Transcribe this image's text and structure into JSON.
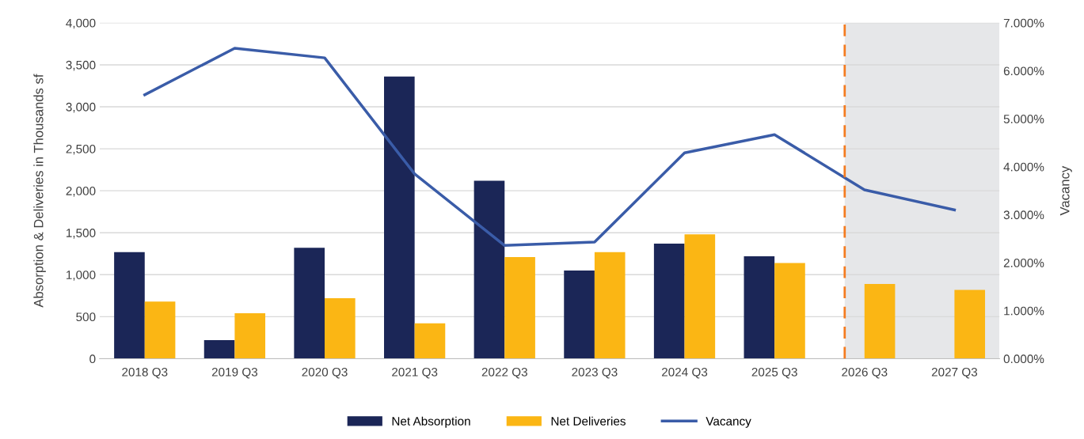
{
  "chart_data": {
    "type": "bar",
    "ylabel": "Absorption & Deliveries in Thousands sf",
    "y2label": "Vacancy",
    "categories": [
      "2018 Q3",
      "2019 Q3",
      "2020 Q3",
      "2021 Q3",
      "2022 Q3",
      "2023 Q3",
      "2024 Q3",
      "2025 Q3",
      "2026 Q3",
      "2027 Q3"
    ],
    "series": [
      {
        "name": "Net Absorption",
        "color": "#1b2657",
        "values": [
          1270,
          220,
          1320,
          3360,
          2120,
          1050,
          1370,
          1220,
          null,
          null
        ]
      },
      {
        "name": "Net Deliveries",
        "color": "#fbb614",
        "values": [
          680,
          540,
          720,
          420,
          1210,
          1270,
          1480,
          1140,
          890,
          820
        ]
      },
      {
        "name": "Vacancy",
        "type": "line",
        "axis": "y2",
        "color": "#3a5ca8",
        "values": [
          5.5,
          6.47,
          6.27,
          3.85,
          2.36,
          2.43,
          4.29,
          4.67,
          3.52,
          3.1
        ]
      }
    ],
    "ylim": [
      0,
      4000
    ],
    "yticks": [
      {
        "value": 0,
        "label": "0"
      },
      {
        "value": 500,
        "label": "500"
      },
      {
        "value": 1000,
        "label": "1,000"
      },
      {
        "value": 1500,
        "label": "1,500"
      },
      {
        "value": 2000,
        "label": "2,000"
      },
      {
        "value": 2500,
        "label": "2,500"
      },
      {
        "value": 3000,
        "label": "3,000"
      },
      {
        "value": 3500,
        "label": "3,500"
      },
      {
        "value": 4000,
        "label": "4,000"
      }
    ],
    "y2lim": [
      0,
      7
    ],
    "y2ticks": [
      {
        "value": 0,
        "label": "0.000%"
      },
      {
        "value": 1,
        "label": "1.000%"
      },
      {
        "value": 2,
        "label": "2.000%"
      },
      {
        "value": 3,
        "label": "3.000%"
      },
      {
        "value": 4,
        "label": "4.000%"
      },
      {
        "value": 5,
        "label": "5.000%"
      },
      {
        "value": 6,
        "label": "6.000%"
      },
      {
        "value": 7,
        "label": "7.000%"
      }
    ],
    "grid": "y",
    "legend": "bottom",
    "marker": "none",
    "line_style": "solid"
  }
}
